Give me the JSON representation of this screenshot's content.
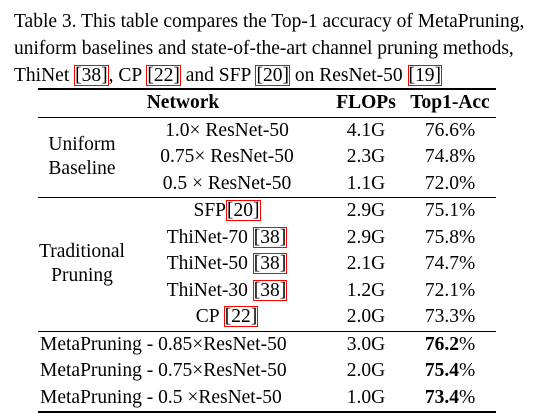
{
  "caption": {
    "part1": "Table 3. This table compares the Top-1 accuracy of MetaPruning, uniform baselines and state-of-the-art channel pruning methods, ThiNet ",
    "ref1": "[38]",
    "part2": ", CP ",
    "ref2": "[22]",
    "part3": " and SFP ",
    "ref3": "[20]",
    "part4": " on ResNet-50 ",
    "ref4": "[19]"
  },
  "headers": {
    "network": "Network",
    "flops": "FLOPs",
    "acc": "Top1-Acc"
  },
  "groups": {
    "uniform": {
      "line1": "Uniform",
      "line2": "Baseline"
    },
    "traditional": {
      "line1": "Traditional",
      "line2": "Pruning"
    }
  },
  "rows": [
    {
      "network": "1.0× ResNet-50",
      "flops": "4.1G",
      "acc": "76.6%"
    },
    {
      "network": "0.75× ResNet-50",
      "flops": "2.3G",
      "acc": "74.8%"
    },
    {
      "network": "0.5 × ResNet-50",
      "flops": "1.1G",
      "acc": "72.0%"
    },
    {
      "network": "SFP",
      "ref": "[20]",
      "flops": "2.9G",
      "acc": "75.1%"
    },
    {
      "network": "ThiNet-70 ",
      "ref": "[38]",
      "flops": "2.9G",
      "acc": "75.8%"
    },
    {
      "network": "ThiNet-50 ",
      "ref": "[38]",
      "flops": "2.1G",
      "acc": "74.7%"
    },
    {
      "network": "ThiNet-30 ",
      "ref": "[38]",
      "flops": "1.2G",
      "acc": "72.1%"
    },
    {
      "network": "CP ",
      "ref": "[22]",
      "flops": "2.0G",
      "acc": "73.3%"
    },
    {
      "network": "MetaPruning - 0.85×ResNet-50",
      "flops": "3.0G",
      "acc_bold": "76.2",
      "acc_rest": "%"
    },
    {
      "network": "MetaPruning - 0.75×ResNet-50",
      "flops": "2.0G",
      "acc_bold": "75.4",
      "acc_rest": "%"
    },
    {
      "network": "MetaPruning - 0.5 ×ResNet-50",
      "flops": "1.0G",
      "acc_bold": "73.4",
      "acc_rest": "%"
    }
  ],
  "colors": {
    "ref_box": "#ff0000",
    "text": "#000000",
    "background": "#ffffff"
  }
}
